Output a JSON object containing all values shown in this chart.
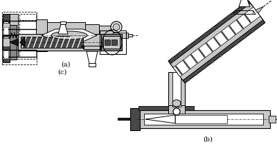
{
  "bg_color": "#ffffff",
  "light_gray": "#c8c8c8",
  "mid_gray": "#888888",
  "dark_gray": "#484848",
  "very_dark": "#181818",
  "label_a": "(a)",
  "label_b": "(b)",
  "label_c": "(c)",
  "font_size": 7
}
